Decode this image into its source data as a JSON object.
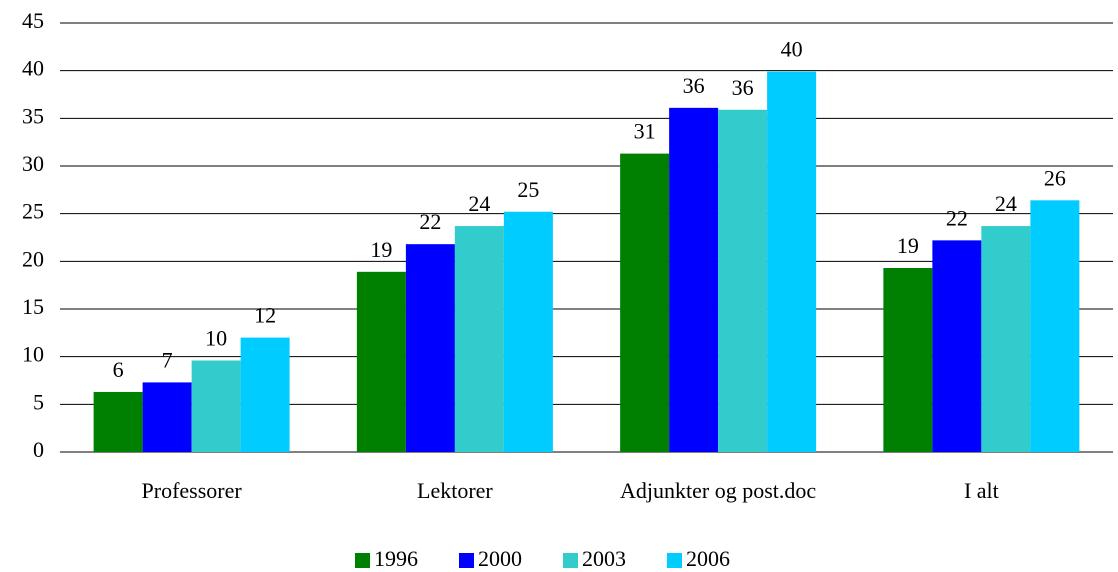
{
  "chart_data": {
    "type": "bar",
    "categories": [
      "Professorer",
      "Lektorer",
      "Adjunkter og post.doc",
      "I alt"
    ],
    "series": [
      {
        "name": "1996",
        "color": "#008000",
        "values": [
          6.3,
          18.9,
          31.3,
          19.3
        ],
        "value_labels": [
          "6",
          "19",
          "31",
          "19"
        ]
      },
      {
        "name": "2000",
        "color": "#0000ff",
        "values": [
          7.3,
          21.8,
          36.1,
          22.2
        ],
        "value_labels": [
          "7",
          "22",
          "36",
          "22"
        ]
      },
      {
        "name": "2003",
        "color": "#33cccc",
        "values": [
          9.6,
          23.7,
          35.9,
          23.7
        ],
        "value_labels": [
          "10",
          "24",
          "36",
          "24"
        ]
      },
      {
        "name": "2006",
        "color": "#00ccff",
        "values": [
          12.0,
          25.2,
          39.9,
          26.4
        ],
        "value_labels": [
          "12",
          "25",
          "40",
          "26"
        ]
      }
    ],
    "ylim": [
      0,
      45
    ],
    "yticks": [
      0,
      5,
      10,
      15,
      20,
      25,
      30,
      35,
      40,
      45
    ],
    "grid": true,
    "legend": "bottom"
  }
}
